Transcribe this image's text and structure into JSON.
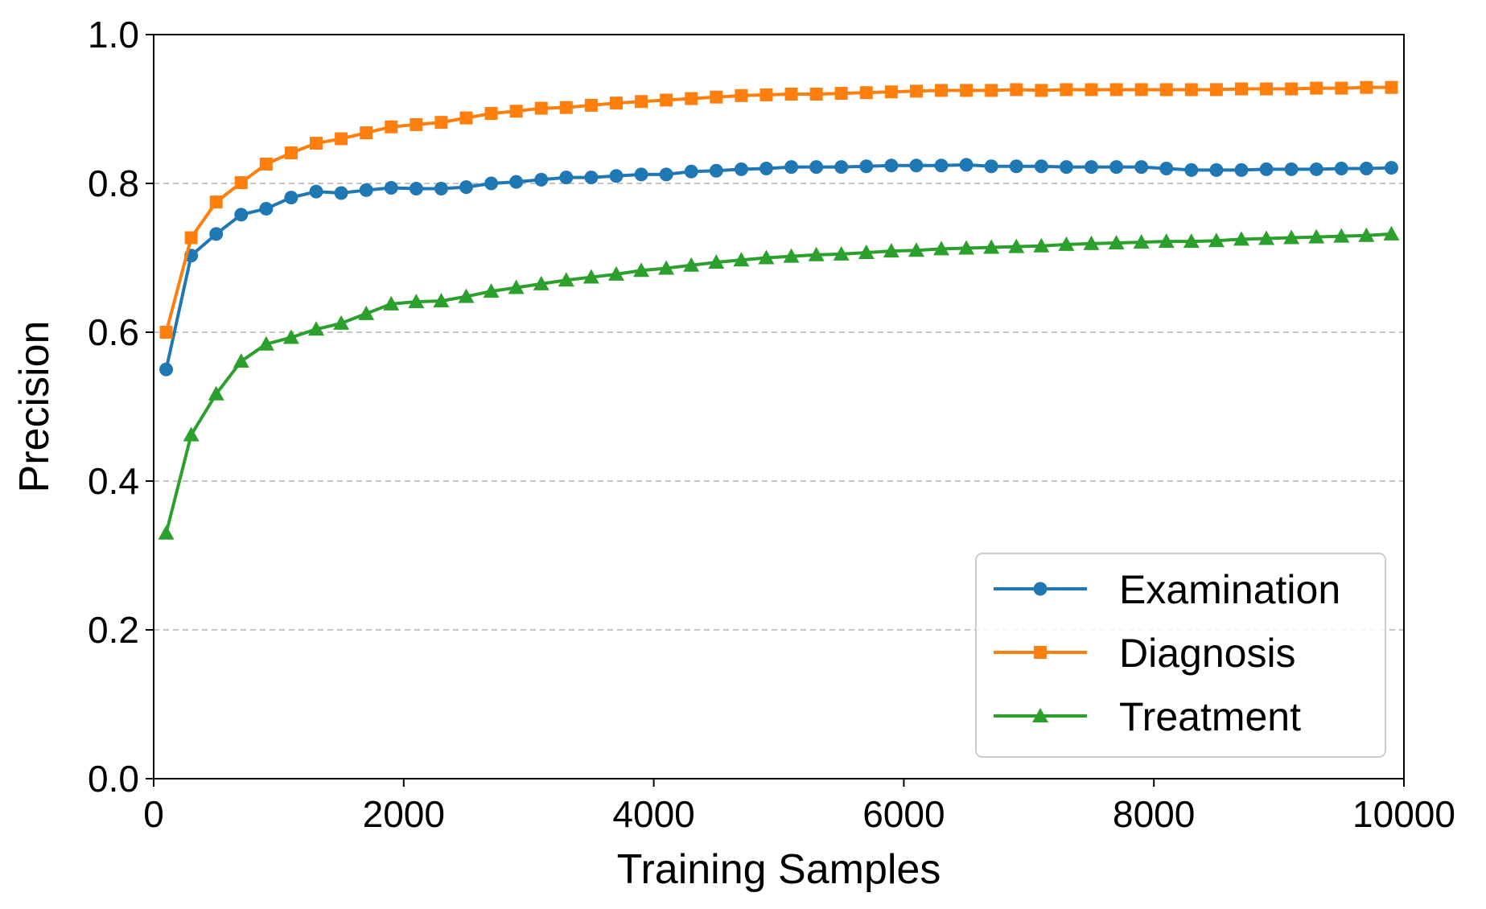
{
  "chart_data": {
    "type": "line",
    "title": "",
    "xlabel": "Training Samples",
    "ylabel": "Precision",
    "xlim": [
      0,
      10000
    ],
    "ylim": [
      0.0,
      1.0
    ],
    "x_ticks": [
      0,
      2000,
      4000,
      6000,
      8000,
      10000
    ],
    "x_tick_labels": [
      "0",
      "2000",
      "4000",
      "6000",
      "8000",
      "10000"
    ],
    "y_ticks": [
      0.0,
      0.2,
      0.4,
      0.6,
      0.8,
      1.0
    ],
    "y_tick_labels": [
      "0.0",
      "0.2",
      "0.4",
      "0.6",
      "0.8",
      "1.0"
    ],
    "grid": "y-axis, dashed",
    "legend_position": "lower-right",
    "x": [
      100,
      300,
      500,
      700,
      900,
      1100,
      1300,
      1500,
      1700,
      1900,
      2100,
      2300,
      2500,
      2700,
      2900,
      3100,
      3300,
      3500,
      3700,
      3900,
      4100,
      4300,
      4500,
      4700,
      4900,
      5100,
      5300,
      5500,
      5700,
      5900,
      6100,
      6300,
      6500,
      6700,
      6900,
      7100,
      7300,
      7500,
      7700,
      7900,
      8100,
      8300,
      8500,
      8700,
      8900,
      9100,
      9300,
      9500,
      9700,
      9900
    ],
    "series": [
      {
        "name": "Examination",
        "color": "#1f77b4",
        "marker": "circle",
        "values": [
          0.55,
          0.703,
          0.732,
          0.758,
          0.766,
          0.781,
          0.789,
          0.787,
          0.791,
          0.794,
          0.793,
          0.793,
          0.795,
          0.8,
          0.802,
          0.805,
          0.808,
          0.808,
          0.81,
          0.812,
          0.812,
          0.816,
          0.817,
          0.819,
          0.82,
          0.822,
          0.822,
          0.822,
          0.823,
          0.824,
          0.824,
          0.824,
          0.825,
          0.823,
          0.823,
          0.823,
          0.822,
          0.822,
          0.822,
          0.822,
          0.82,
          0.818,
          0.818,
          0.818,
          0.819,
          0.819,
          0.819,
          0.82,
          0.82,
          0.821
        ]
      },
      {
        "name": "Diagnosis",
        "color": "#ff7f0e",
        "marker": "square",
        "values": [
          0.6,
          0.727,
          0.775,
          0.801,
          0.826,
          0.841,
          0.854,
          0.86,
          0.868,
          0.876,
          0.879,
          0.882,
          0.888,
          0.894,
          0.897,
          0.901,
          0.902,
          0.905,
          0.908,
          0.91,
          0.912,
          0.914,
          0.916,
          0.918,
          0.919,
          0.92,
          0.92,
          0.921,
          0.922,
          0.923,
          0.924,
          0.925,
          0.925,
          0.925,
          0.926,
          0.925,
          0.926,
          0.926,
          0.926,
          0.926,
          0.926,
          0.926,
          0.926,
          0.927,
          0.927,
          0.927,
          0.928,
          0.928,
          0.929,
          0.929
        ]
      },
      {
        "name": "Treatment",
        "color": "#2ca02c",
        "marker": "triangle",
        "values": [
          0.33,
          0.462,
          0.517,
          0.561,
          0.584,
          0.593,
          0.604,
          0.612,
          0.625,
          0.638,
          0.641,
          0.642,
          0.648,
          0.655,
          0.66,
          0.665,
          0.67,
          0.674,
          0.678,
          0.683,
          0.686,
          0.69,
          0.694,
          0.697,
          0.7,
          0.702,
          0.704,
          0.705,
          0.707,
          0.709,
          0.71,
          0.712,
          0.713,
          0.714,
          0.715,
          0.716,
          0.718,
          0.719,
          0.72,
          0.721,
          0.722,
          0.722,
          0.723,
          0.725,
          0.726,
          0.727,
          0.728,
          0.729,
          0.73,
          0.732
        ]
      }
    ]
  }
}
